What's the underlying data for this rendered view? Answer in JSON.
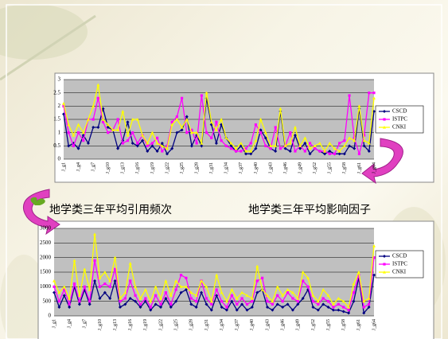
{
  "captions": {
    "left": "地学类三年平均引用频次",
    "right": "地学类三年平均影响因子"
  },
  "chart_data": [
    {
      "type": "line",
      "categories": [
        "J_g1",
        null,
        null,
        "J_g4",
        null,
        null,
        "J_g7",
        null,
        null,
        "J_g10",
        null,
        null,
        "J_g13",
        null,
        null,
        "J_g16",
        null,
        null,
        "J_g19",
        null,
        null,
        "J_g22",
        null,
        null,
        "J_g25",
        null,
        null,
        "J_g28",
        null,
        null,
        "J_g31",
        null,
        null,
        "J_g34",
        null,
        null,
        "J_g37",
        null,
        null,
        "J_g40",
        null,
        null,
        "J_g43",
        null,
        null,
        "J_g46",
        null,
        null,
        "J_g49",
        null,
        null,
        "J_g52",
        null,
        null,
        "J_g55",
        null,
        null,
        "J_g58",
        null,
        null,
        "J_g61",
        null,
        null,
        "J_g64"
      ],
      "ylim": [
        0,
        3
      ],
      "yticks": [
        0,
        0.5,
        1,
        1.5,
        2,
        2.5,
        3
      ],
      "series": [
        {
          "name": "CSCD",
          "color": "#000080",
          "marker": "diamond",
          "values": [
            1.7,
            0.5,
            0.6,
            0.4,
            0.9,
            0.6,
            1.2,
            1.2,
            1.9,
            1.2,
            1.1,
            0.4,
            0.7,
            1.4,
            0.6,
            0.5,
            0.7,
            0.3,
            0.5,
            0.3,
            0.6,
            0.2,
            0.4,
            1.0,
            1.1,
            1.6,
            0.5,
            0.9,
            0.5,
            2.3,
            1.3,
            0.6,
            1.3,
            0.8,
            0.5,
            0.3,
            0.5,
            0.2,
            0.2,
            0.4,
            1.1,
            0.8,
            0.4,
            0.3,
            1.8,
            0.4,
            0.3,
            0.9,
            0.4,
            0.6,
            0.2,
            0.4,
            0.3,
            0.2,
            0.3,
            0.2,
            0.2,
            0.2,
            0.5,
            0.4,
            1.9,
            0.5,
            0.3,
            1.8
          ]
        },
        {
          "name": "ISTPC",
          "color": "#ff00ff",
          "marker": "square",
          "values": [
            2.0,
            1.0,
            0.5,
            1.0,
            0.7,
            1.5,
            1.5,
            2.3,
            1.4,
            1.0,
            1.1,
            1.5,
            0.6,
            0.7,
            1.0,
            0.6,
            0.9,
            0.5,
            0.6,
            0.8,
            0.3,
            0.5,
            1.4,
            1.6,
            2.3,
            1.0,
            1.1,
            0.6,
            2.4,
            1.0,
            0.8,
            1.4,
            0.7,
            0.5,
            0.4,
            0.3,
            0.3,
            0.4,
            0.6,
            1.3,
            1.0,
            0.5,
            0.4,
            1.2,
            0.4,
            0.5,
            1.0,
            0.3,
            0.5,
            0.3,
            0.6,
            0.4,
            0.3,
            0.3,
            0.2,
            0.2,
            0.6,
            0.7,
            2.4,
            0.8,
            0.2,
            0.9,
            2.5,
            2.5
          ]
        },
        {
          "name": "CNKI",
          "color": "#ffff00",
          "marker": "triangle",
          "values": [
            2.1,
            1.3,
            0.9,
            1.3,
            1.0,
            1.5,
            2.0,
            2.8,
            1.5,
            1.3,
            1.1,
            1.1,
            1.8,
            0.9,
            1.5,
            1.5,
            0.9,
            0.6,
            1.0,
            0.6,
            0.5,
            0.4,
            1.3,
            1.5,
            1.2,
            1.5,
            1.0,
            1.0,
            0.6,
            2.5,
            1.4,
            1.1,
            1.5,
            0.8,
            0.6,
            0.4,
            0.6,
            0.3,
            0.3,
            0.7,
            1.5,
            1.0,
            0.5,
            0.5,
            1.9,
            0.5,
            0.6,
            1.2,
            0.5,
            0.8,
            0.4,
            0.5,
            0.6,
            0.3,
            0.6,
            0.4,
            0.3,
            0.5,
            0.8,
            0.7,
            2.0,
            0.7,
            0.6,
            2.3
          ]
        }
      ]
    },
    {
      "type": "line",
      "categories": [
        "J_g1",
        null,
        null,
        "J_g4",
        null,
        null,
        "J_g7",
        null,
        null,
        "J_g10",
        null,
        null,
        "J_g13",
        null,
        null,
        "J_g16",
        null,
        null,
        "J_g19",
        null,
        null,
        "J_g22",
        null,
        null,
        "J_g25",
        null,
        null,
        "J_g28",
        null,
        null,
        "J_g31",
        null,
        null,
        "J_g34",
        null,
        null,
        "J_g37",
        null,
        null,
        "J_g40",
        null,
        null,
        "J_g43",
        null,
        null,
        "J_g46",
        null,
        null,
        "J_g49",
        null,
        null,
        "J_g52",
        null,
        null,
        "J_g55",
        null,
        null,
        "J_g58",
        null,
        null,
        "J_g61",
        null,
        null,
        "J_g64"
      ],
      "ylim": [
        0,
        3000
      ],
      "yticks": [
        0,
        500,
        1000,
        1500,
        2000,
        2500,
        3000
      ],
      "series": [
        {
          "name": "CSCD",
          "color": "#000080",
          "marker": "diamond",
          "values": [
            800,
            300,
            700,
            300,
            1000,
            400,
            900,
            400,
            1200,
            600,
            800,
            600,
            1200,
            300,
            400,
            600,
            500,
            300,
            500,
            200,
            400,
            300,
            600,
            300,
            500,
            800,
            900,
            400,
            300,
            800,
            400,
            200,
            700,
            300,
            200,
            500,
            200,
            400,
            200,
            300,
            800,
            900,
            300,
            200,
            400,
            300,
            400,
            200,
            400,
            600,
            900,
            300,
            200,
            400,
            300,
            200,
            200,
            150,
            100,
            500,
            1300,
            100,
            300,
            1400
          ]
        },
        {
          "name": "ISTPC",
          "color": "#ff00ff",
          "marker": "square",
          "values": [
            1000,
            500,
            900,
            400,
            1100,
            500,
            1000,
            500,
            1900,
            1000,
            1100,
            1000,
            1600,
            500,
            600,
            1200,
            700,
            400,
            600,
            300,
            700,
            400,
            800,
            400,
            900,
            1400,
            1300,
            600,
            500,
            1200,
            600,
            400,
            900,
            500,
            300,
            700,
            400,
            600,
            400,
            500,
            1200,
            1300,
            500,
            400,
            700,
            500,
            800,
            600,
            500,
            1200,
            1000,
            500,
            400,
            600,
            500,
            300,
            400,
            300,
            200,
            800,
            1400,
            300,
            400,
            2000
          ]
        },
        {
          "name": "CNKI",
          "color": "#ffff00",
          "marker": "triangle",
          "values": [
            1200,
            800,
            1000,
            600,
            1900,
            700,
            1600,
            900,
            2800,
            1300,
            1500,
            1200,
            2000,
            600,
            800,
            1800,
            1000,
            600,
            900,
            500,
            1000,
            600,
            1200,
            700,
            1200,
            1000,
            1000,
            800,
            700,
            1200,
            1000,
            500,
            1400,
            800,
            500,
            900,
            600,
            800,
            700,
            600,
            1700,
            900,
            700,
            500,
            1000,
            700,
            900,
            800,
            600,
            1500,
            1300,
            700,
            500,
            900,
            700,
            400,
            600,
            500,
            300,
            1100,
            1500,
            500,
            600,
            2400
          ]
        }
      ]
    }
  ]
}
